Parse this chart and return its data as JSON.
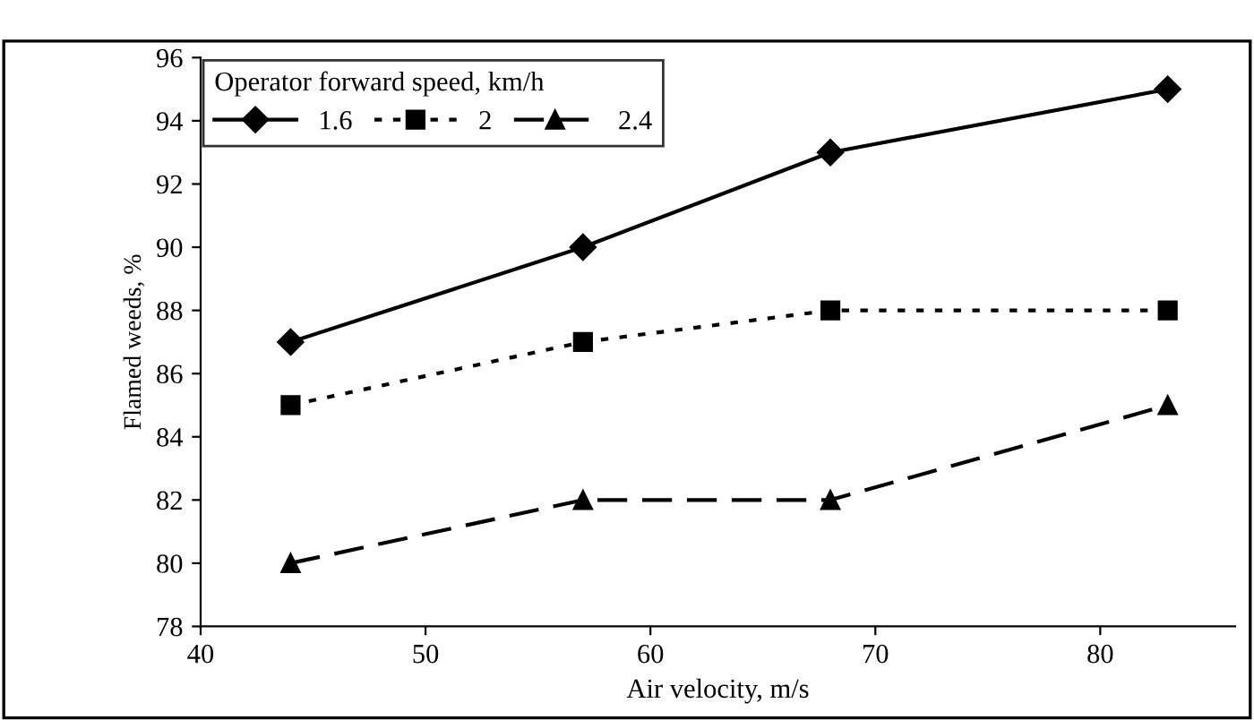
{
  "chart_data": {
    "type": "line",
    "xlabel": "Air velocity, m/s",
    "ylabel": "Flamed weeds, %",
    "legend_title": "Operator forward speed, km/h",
    "legend": "top left",
    "x": [
      44,
      57,
      68,
      83
    ],
    "series": [
      {
        "name": "1.6",
        "color": "#000000",
        "values": [
          87,
          90,
          93,
          95
        ],
        "marker": "diamond",
        "line_style": "solid"
      },
      {
        "name": "2",
        "color": "#000000",
        "values": [
          85,
          87,
          88,
          88
        ],
        "marker": "square",
        "line_style": "dotted"
      },
      {
        "name": "2.4",
        "color": "#000000",
        "values": [
          80,
          82,
          82,
          85
        ],
        "marker": "triangle",
        "line_style": "dashed"
      }
    ],
    "xlim": [
      40,
      86
    ],
    "xticks": [
      40,
      50,
      60,
      70,
      80
    ],
    "ylim": [
      78,
      96
    ],
    "yticks": [
      78,
      80,
      82,
      84,
      86,
      88,
      90,
      92,
      94,
      96
    ],
    "grid": false
  }
}
